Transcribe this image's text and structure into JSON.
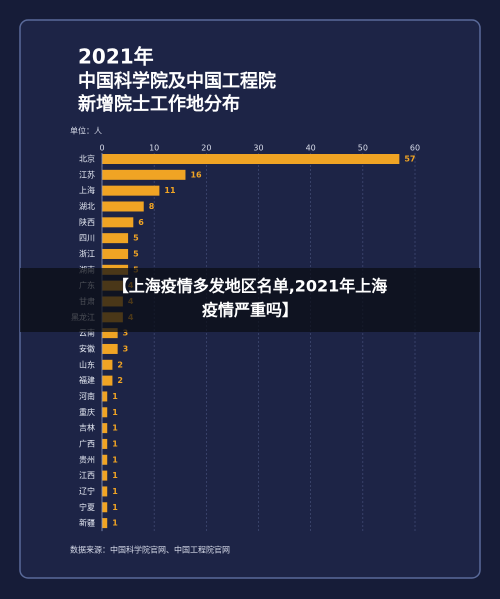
{
  "chart_data": {
    "type": "bar",
    "orientation": "horizontal",
    "title_lines": [
      "2021年",
      "中国科学院及中国工程院",
      "新增院士工作地分布"
    ],
    "unit": "单位：人",
    "categories": [
      "北京",
      "江苏",
      "上海",
      "湖北",
      "陕西",
      "四川",
      "浙江",
      "湖南",
      "广东",
      "甘肃",
      "黑龙江",
      "云南",
      "安徽",
      "山东",
      "福建",
      "河南",
      "重庆",
      "吉林",
      "广西",
      "贵州",
      "江西",
      "辽宁",
      "宁夏",
      "新疆"
    ],
    "values": [
      57,
      16,
      11,
      8,
      6,
      5,
      5,
      5,
      4,
      4,
      4,
      3,
      3,
      2,
      2,
      1,
      1,
      1,
      1,
      1,
      1,
      1,
      1,
      1
    ],
    "color": "#f0a424",
    "xlim": [
      0,
      60
    ],
    "xticks": [
      0,
      10,
      20,
      30,
      40,
      50,
      60
    ],
    "grid": true,
    "source": "数据来源：中国科学院官网、中国工程院官网"
  },
  "overlay": {
    "lines": [
      "【上海疫情多发地区名单,2021年上海",
      "疫情严重吗】"
    ]
  }
}
